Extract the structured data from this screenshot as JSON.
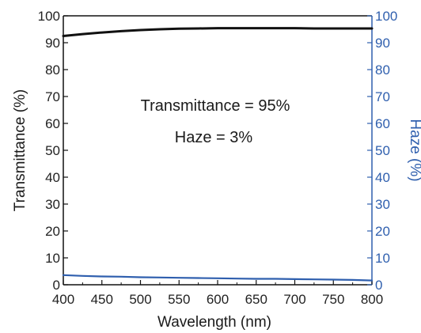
{
  "chart_data": {
    "type": "line",
    "xlabel": "Wavelength (nm)",
    "ylabel_left": "Transmittance (%)",
    "ylabel_right": "Haze (%)",
    "xlim": [
      400,
      800
    ],
    "ylim_left": [
      0,
      100
    ],
    "ylim_right": [
      0,
      100
    ],
    "x_ticks": [
      "400",
      "450",
      "500",
      "550",
      "600",
      "650",
      "700",
      "750",
      "800"
    ],
    "y_left_ticks": [
      "0",
      "10",
      "20",
      "30",
      "40",
      "50",
      "60",
      "70",
      "80",
      "90",
      "100"
    ],
    "y_right_ticks": [
      "0",
      "10",
      "20",
      "30",
      "40",
      "50",
      "60",
      "70",
      "80",
      "90",
      "100"
    ],
    "grid": false,
    "series": [
      {
        "axis": "left",
        "color": "#111111",
        "x": [
          400,
          425,
          450,
          475,
          500,
          525,
          550,
          575,
          600,
          625,
          650,
          675,
          700,
          725,
          750,
          775,
          800
        ],
        "y": [
          92.5,
          93.2,
          93.8,
          94.3,
          94.7,
          95.0,
          95.2,
          95.3,
          95.4,
          95.4,
          95.4,
          95.4,
          95.4,
          95.3,
          95.3,
          95.3,
          95.3
        ]
      },
      {
        "axis": "right",
        "color": "#2f5fae",
        "x": [
          400,
          425,
          450,
          475,
          500,
          525,
          550,
          575,
          600,
          625,
          650,
          675,
          700,
          725,
          750,
          775,
          800
        ],
        "y": [
          3.6,
          3.3,
          3.1,
          3.0,
          2.8,
          2.7,
          2.6,
          2.5,
          2.4,
          2.3,
          2.2,
          2.2,
          2.1,
          2.0,
          1.9,
          1.8,
          1.6
        ]
      }
    ],
    "annotations": [
      "Transmittance = 95%",
      "Haze = 3%"
    ]
  }
}
